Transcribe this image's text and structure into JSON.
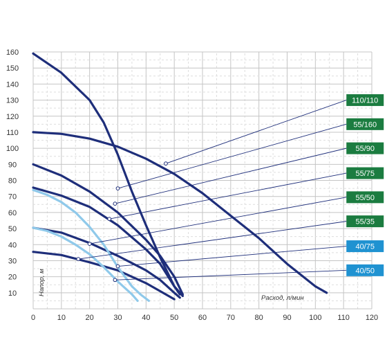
{
  "chart_data": {
    "type": "line",
    "xlabel": "Расход, л/мин",
    "ylabel": "Напор, м",
    "xlim": [
      0,
      120
    ],
    "ylim": [
      0,
      160
    ],
    "x_ticks": [
      0,
      10,
      20,
      30,
      40,
      50,
      60,
      70,
      80,
      90,
      100,
      110,
      120
    ],
    "y_ticks": [
      10,
      20,
      30,
      40,
      50,
      60,
      70,
      80,
      90,
      100,
      110,
      120,
      130,
      140,
      150,
      160
    ],
    "grid": true,
    "series": [
      {
        "name": "110/110",
        "color": "#1e2e7a",
        "marker": [
          47,
          90.5
        ],
        "tag": [
          111,
          130
        ],
        "x": [
          0,
          10,
          20,
          30,
          40,
          50,
          60,
          70,
          80,
          90,
          100,
          104
        ],
        "y": [
          110,
          109,
          106,
          101,
          93.5,
          84,
          72,
          58,
          44,
          28,
          14,
          10
        ]
      },
      {
        "name": "55/160",
        "color": "#1e2e7a",
        "marker": [
          30,
          75
        ],
        "tag": [
          111,
          115
        ],
        "x": [
          0,
          10,
          20,
          25,
          30,
          35,
          40,
          45,
          50,
          53
        ],
        "y": [
          159,
          147,
          130,
          116,
          96,
          73,
          52,
          32,
          14,
          8
        ]
      },
      {
        "name": "55/90",
        "color": "#1e2e7a",
        "marker": [
          29,
          65.5
        ],
        "tag": [
          111,
          100
        ],
        "x": [
          0,
          10,
          20,
          30,
          40,
          45,
          50,
          53
        ],
        "y": [
          90,
          83,
          73,
          60,
          43,
          33,
          20,
          9
        ]
      },
      {
        "name": "55/75",
        "color": "#1e2e7a",
        "marker": [
          27,
          56
        ],
        "tag": [
          111,
          84.5
        ],
        "x": [
          0,
          10,
          20,
          30,
          40,
          45,
          50,
          52
        ],
        "y": [
          75.5,
          70.5,
          63.5,
          52,
          37,
          28,
          14,
          9
        ]
      },
      {
        "name": "55/50",
        "color": "#1e2e7a",
        "marker": [
          20,
          40.5
        ],
        "tag": [
          111,
          69.5
        ],
        "x": [
          0,
          10,
          20,
          30,
          40,
          45,
          50,
          52
        ],
        "y": [
          50.5,
          47.5,
          41,
          33,
          24,
          18,
          10,
          7
        ]
      },
      {
        "name": "55/35",
        "color": "#1e2e7a",
        "marker": [
          16,
          31
        ],
        "tag": [
          111,
          54.5
        ],
        "x": [
          0,
          10,
          20,
          30,
          40,
          45,
          50
        ],
        "y": [
          35.5,
          33.5,
          29,
          24,
          16,
          11,
          6
        ]
      },
      {
        "name": "40/75",
        "color": "#8fc9ea",
        "marker": [
          30,
          26.5
        ],
        "tag": [
          111,
          39
        ],
        "x": [
          0,
          5,
          10,
          15,
          20,
          25,
          30,
          35,
          38,
          41
        ],
        "y": [
          74,
          71,
          66.5,
          60,
          51,
          40,
          26,
          14,
          9,
          5
        ]
      },
      {
        "name": "40/50",
        "color": "#8fc9ea",
        "marker": [
          29,
          18
        ],
        "tag": [
          111,
          24
        ],
        "x": [
          0,
          5,
          10,
          15,
          20,
          25,
          30,
          35,
          37
        ],
        "y": [
          50.5,
          48.5,
          45,
          40,
          34,
          26,
          17,
          9,
          5
        ]
      }
    ]
  },
  "tag_colors": {
    "green": "#1b7c40",
    "blue": "#1f92d1"
  },
  "tags": [
    {
      "label": "110/110",
      "color": "green"
    },
    {
      "label": "55/160",
      "color": "green"
    },
    {
      "label": "55/90",
      "color": "green"
    },
    {
      "label": "55/75",
      "color": "green"
    },
    {
      "label": "55/50",
      "color": "green"
    },
    {
      "label": "55/35",
      "color": "green"
    },
    {
      "label": "40/75",
      "color": "blue"
    },
    {
      "label": "40/50",
      "color": "blue"
    }
  ]
}
